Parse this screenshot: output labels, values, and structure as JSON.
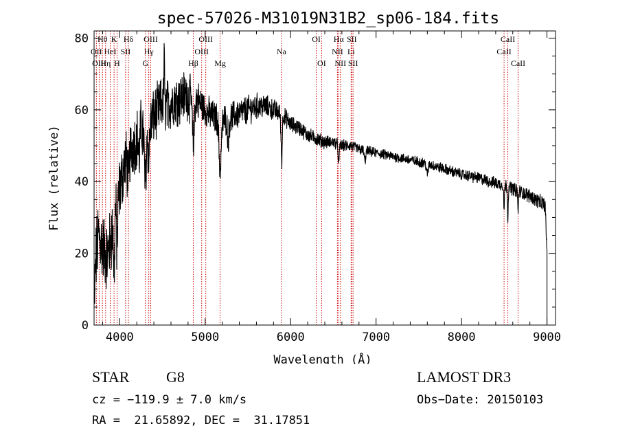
{
  "chart_data": {
    "type": "line",
    "title": "spec-57026-M31019N31B2_sp06-184.fits",
    "xlabel": "Wavelength (Å)",
    "ylabel": "Flux (relative)",
    "xlim": [
      3700,
      9100
    ],
    "ylim": [
      0,
      82
    ],
    "xticks": [
      4000,
      5000,
      6000,
      7000,
      8000,
      9000
    ],
    "yticks": [
      0,
      20,
      40,
      60,
      80
    ],
    "grid": false,
    "spectrum_anchors": [
      [
        3700,
        5
      ],
      [
        3720,
        18
      ],
      [
        3750,
        25
      ],
      [
        3800,
        22
      ],
      [
        3850,
        19
      ],
      [
        3900,
        24
      ],
      [
        3950,
        33
      ],
      [
        4000,
        38
      ],
      [
        4050,
        44
      ],
      [
        4100,
        48
      ],
      [
        4150,
        50
      ],
      [
        4200,
        52
      ],
      [
        4250,
        55
      ],
      [
        4300,
        53
      ],
      [
        4350,
        56
      ],
      [
        4400,
        58
      ],
      [
        4450,
        60
      ],
      [
        4500,
        62
      ],
      [
        4550,
        61
      ],
      [
        4600,
        62
      ],
      [
        4650,
        63
      ],
      [
        4700,
        63
      ],
      [
        4750,
        64
      ],
      [
        4800,
        64
      ],
      [
        4850,
        62
      ],
      [
        4900,
        63
      ],
      [
        5000,
        60
      ],
      [
        5100,
        58
      ],
      [
        5200,
        57
      ],
      [
        5300,
        58
      ],
      [
        5400,
        59
      ],
      [
        5500,
        60
      ],
      [
        5600,
        61
      ],
      [
        5700,
        61
      ],
      [
        5800,
        60
      ],
      [
        5900,
        59
      ],
      [
        6000,
        56
      ],
      [
        6100,
        55
      ],
      [
        6200,
        53
      ],
      [
        6300,
        52
      ],
      [
        6400,
        51
      ],
      [
        6500,
        51
      ],
      [
        6600,
        50
      ],
      [
        6700,
        50
      ],
      [
        6800,
        49
      ],
      [
        6900,
        48.5
      ],
      [
        7000,
        48
      ],
      [
        7200,
        47
      ],
      [
        7400,
        46
      ],
      [
        7600,
        45
      ],
      [
        7800,
        43.5
      ],
      [
        8000,
        42
      ],
      [
        8200,
        41
      ],
      [
        8400,
        39.5
      ],
      [
        8500,
        39
      ],
      [
        8600,
        38
      ],
      [
        8700,
        37
      ],
      [
        8800,
        36
      ],
      [
        8900,
        34.5
      ],
      [
        8950,
        34
      ],
      [
        8980,
        33
      ],
      [
        9000,
        20
      ]
    ],
    "absorption_dips": [
      [
        3934,
        15,
        10
      ],
      [
        3969,
        13,
        10
      ],
      [
        4102,
        8,
        14
      ],
      [
        4227,
        7,
        10
      ],
      [
        4300,
        14,
        14
      ],
      [
        4340,
        8,
        14
      ],
      [
        4861,
        12,
        14
      ],
      [
        5175,
        14,
        18
      ],
      [
        5270,
        6,
        14
      ],
      [
        5893,
        18,
        10
      ],
      [
        6563,
        5,
        10
      ],
      [
        6870,
        3,
        12
      ],
      [
        7600,
        3,
        14
      ],
      [
        8498,
        7,
        6
      ],
      [
        8542,
        9,
        6
      ],
      [
        8662,
        6,
        6
      ]
    ],
    "emission_spikes": [
      [
        4520,
        14,
        5
      ],
      [
        5890,
        8,
        6
      ]
    ],
    "noise_levels": [
      [
        3700,
        9
      ],
      [
        4000,
        8
      ],
      [
        4300,
        7
      ],
      [
        4800,
        6
      ],
      [
        5000,
        4
      ],
      [
        5500,
        3.5
      ],
      [
        6000,
        2
      ],
      [
        6500,
        1.5
      ],
      [
        7000,
        1.2
      ],
      [
        8000,
        1.3
      ],
      [
        9000,
        1.8
      ]
    ],
    "line_markers": [
      {
        "label": "Hθ",
        "x": 3798,
        "row": 0
      },
      {
        "label": "OII",
        "x": 3727,
        "row": 1
      },
      {
        "label": "OIII",
        "x": 3760,
        "row": 2
      },
      {
        "label": "K",
        "x": 3934,
        "row": 0
      },
      {
        "label": "HeI",
        "x": 3889,
        "row": 1
      },
      {
        "label": "Hη",
        "x": 3835,
        "row": 2
      },
      {
        "label": "Hδ",
        "x": 4102,
        "row": 0
      },
      {
        "label": "SII",
        "x": 4069,
        "row": 1
      },
      {
        "label": "H",
        "x": 3969,
        "row": 2
      },
      {
        "label": "OIII",
        "x": 4363,
        "row": 0
      },
      {
        "label": "Hγ",
        "x": 4340,
        "row": 1
      },
      {
        "label": "G",
        "x": 4300,
        "row": 2
      },
      {
        "label": "OIII",
        "x": 5007,
        "row": 0
      },
      {
        "label": "OIII",
        "x": 4959,
        "row": 1
      },
      {
        "label": "Hβ",
        "x": 4861,
        "row": 2
      },
      {
        "label": "Mg",
        "x": 5175,
        "row": 2
      },
      {
        "label": "Na",
        "x": 5893,
        "row": 1
      },
      {
        "label": "OI",
        "x": 6300,
        "row": 0
      },
      {
        "label": "OI",
        "x": 6363,
        "row": 2
      },
      {
        "label": "Hα",
        "x": 6563,
        "row": 0
      },
      {
        "label": "NII",
        "x": 6548,
        "row": 1
      },
      {
        "label": "NII",
        "x": 6583,
        "row": 2
      },
      {
        "label": "SII",
        "x": 6716,
        "row": 0
      },
      {
        "label": "Li",
        "x": 6708,
        "row": 1
      },
      {
        "label": "SII",
        "x": 6731,
        "row": 2
      },
      {
        "label": "CaII",
        "x": 8542,
        "row": 0
      },
      {
        "label": "CaII",
        "x": 8498,
        "row": 1
      },
      {
        "label": "CaII",
        "x": 8662,
        "row": 2
      }
    ]
  },
  "info": {
    "obj_class": "STAR",
    "obj_subclass": "G8",
    "survey": "LAMOST DR3",
    "cz": "cz = −119.9 ± 7.0 km/s",
    "obs_date": "Obs−Date: 20150103",
    "coords": "RA =  21.65892, DEC =  31.17851"
  },
  "colors": {
    "axis": "#000000",
    "spectrum": "#000000",
    "marker_line": "#cc0000"
  }
}
